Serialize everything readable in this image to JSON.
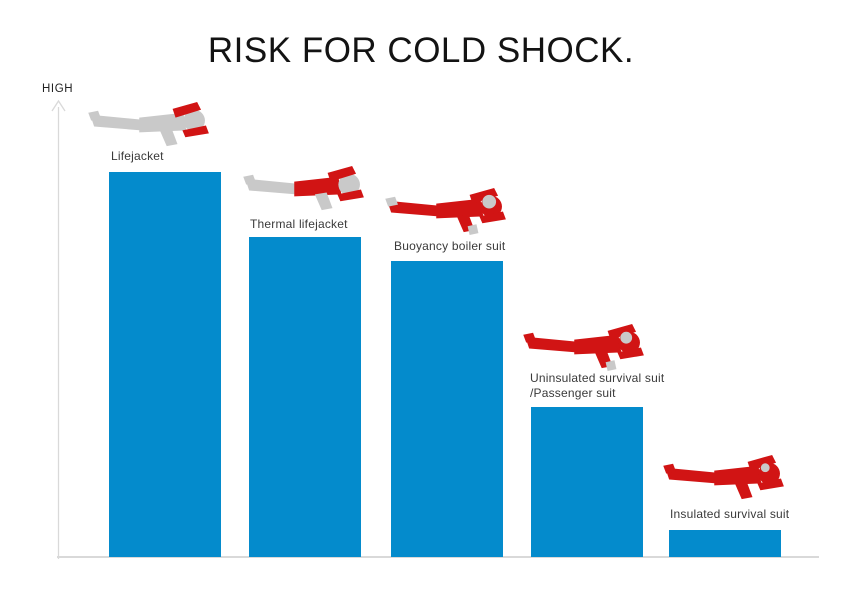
{
  "title": "RISK FOR COLD SHOCK.",
  "axis": {
    "y_label": "HIGH"
  },
  "bars": [
    {
      "label": "Lifejacket",
      "icon": "person-floating-wearing-lifejacket"
    },
    {
      "label": "Thermal lifejacket",
      "icon": "person-floating-wearing-thermal-lifejacket"
    },
    {
      "label": "Buoyancy boiler suit",
      "icon": "person-floating-wearing-buoyancy-boiler-suit"
    },
    {
      "label": "Uninsulated survival suit",
      "label2": "/Passenger suit",
      "icon": "person-floating-wearing-uninsulated-survival-suit"
    },
    {
      "label": "Insulated survival suit",
      "icon": "person-floating-wearing-insulated-survival-suit"
    }
  ],
  "colors": {
    "bar-blue": "#048bcc",
    "suit-red": "#d11414",
    "body-gray": "#c9c9c9",
    "axis-gray": "#d9d9d9",
    "label-text": "#3a3a3a",
    "title-text": "#131313"
  },
  "chart_data": {
    "type": "bar",
    "title": "RISK FOR COLD SHOCK.",
    "ylabel": "HIGH",
    "xlabel": "",
    "categories": [
      "Lifejacket",
      "Thermal lifejacket",
      "Buoyancy boiler suit",
      "Uninsulated survival suit /Passenger suit",
      "Insulated survival suit"
    ],
    "values": [
      100,
      83,
      77,
      39,
      7
    ],
    "ylim": [
      0,
      100
    ],
    "grid": false,
    "legend": false,
    "bar_color": "#048bcc"
  }
}
